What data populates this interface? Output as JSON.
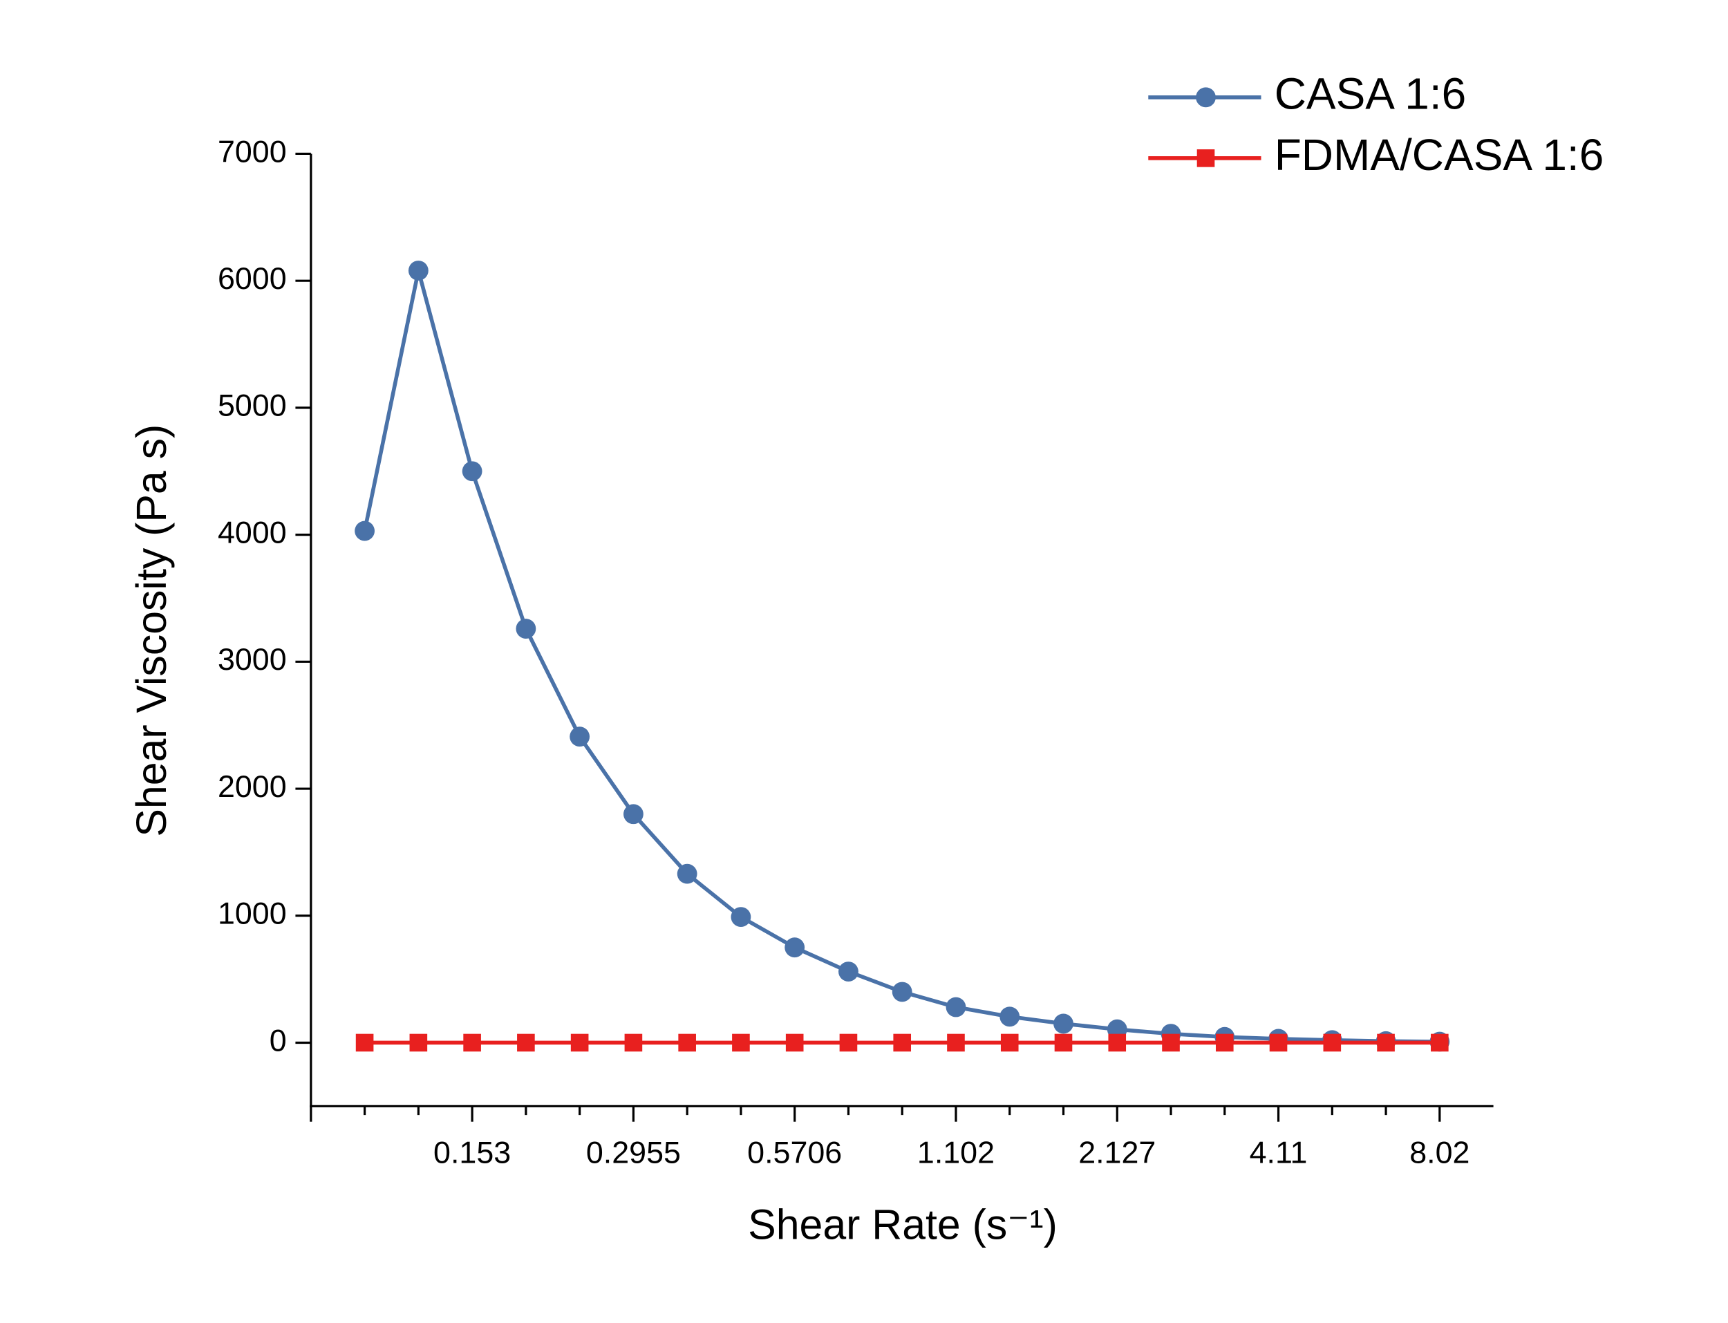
{
  "chart_data": {
    "type": "line",
    "xlabel": "Shear Rate (s⁻¹)",
    "ylabel": "Shear Viscosity (Pa s)",
    "categories": [
      null,
      null,
      "0.153",
      null,
      null,
      "0.2955",
      null,
      null,
      "0.5706",
      null,
      null,
      "1.102",
      null,
      null,
      "2.127",
      null,
      null,
      "4.11",
      null,
      null,
      "8.02"
    ],
    "series": [
      {
        "name": "CASA 1:6",
        "color": "#4a72a8",
        "marker": "circle",
        "values": [
          4030,
          6080,
          4500,
          3260,
          2410,
          1800,
          1330,
          990,
          750,
          560,
          400,
          280,
          205,
          150,
          105,
          70,
          45,
          30,
          20,
          12,
          8
        ]
      },
      {
        "name": "FDMA/CASA 1:6",
        "color": "#e8201f",
        "marker": "square",
        "values": [
          0,
          0,
          0,
          0,
          0,
          0,
          0,
          0,
          0,
          0,
          0,
          0,
          0,
          0,
          0,
          0,
          0,
          0,
          0,
          0,
          0
        ]
      }
    ],
    "ylim": [
      -500,
      7000
    ],
    "yticks": [
      0,
      1000,
      2000,
      3000,
      4000,
      5000,
      6000,
      7000
    ],
    "legend": "top-right",
    "grid": false
  }
}
